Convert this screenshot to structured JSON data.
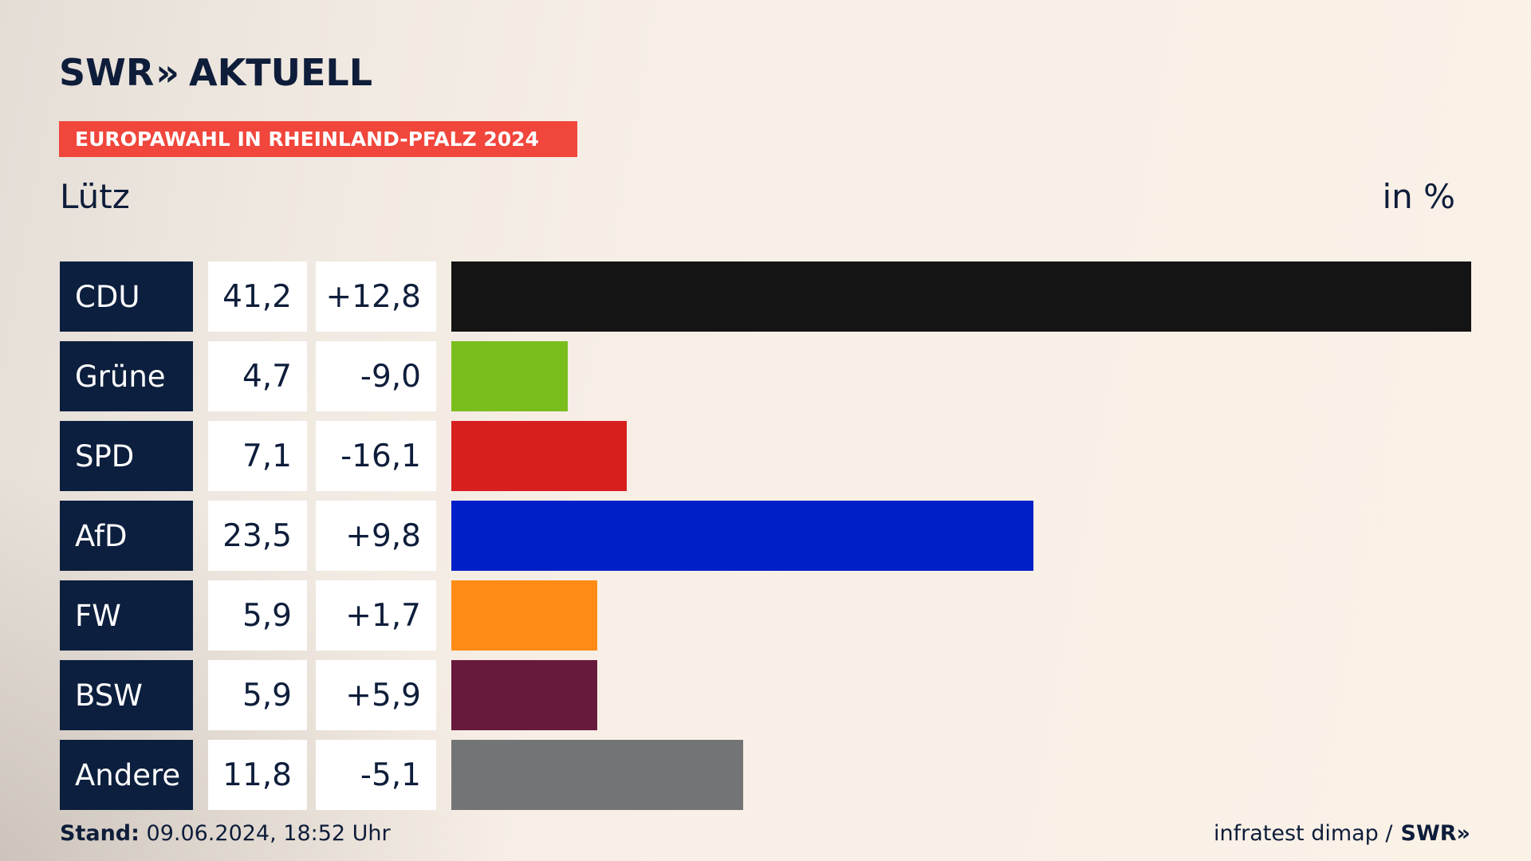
{
  "brand": {
    "name": "SWR",
    "chevrons": "»",
    "section": "AKTUELL"
  },
  "badge": "EUROPAWAHL IN RHEINLAND-PFALZ 2024",
  "place": "Lütz",
  "unit": "in %",
  "chart_data": {
    "type": "bar",
    "orientation": "horizontal",
    "title": "",
    "xlabel": "",
    "ylabel": "",
    "categories": [
      "CDU",
      "Grüne",
      "SPD",
      "AfD",
      "FW",
      "BSW",
      "Andere"
    ],
    "values": [
      41.2,
      4.7,
      7.1,
      23.5,
      5.9,
      5.9,
      11.8
    ],
    "value_labels": [
      "41,2",
      "4,7",
      "7,1",
      "23,5",
      "5,9",
      "5,9",
      "11,8"
    ],
    "diff_labels": [
      "+12,8",
      "-9,0",
      "-16,1",
      "+9,8",
      "+1,7",
      "+5,9",
      "-5,1"
    ],
    "colors": [
      "#141414",
      "#7abe1e",
      "#d71f1f",
      "#001fc8",
      "#ff8b16",
      "#681a3c",
      "#737475"
    ],
    "xlim": [
      0,
      41.2
    ],
    "grid": false,
    "legend": "none"
  },
  "footer": {
    "stand_label": "Stand:",
    "stand_value": "09.06.2024, 18:52 Uhr",
    "source": "infratest dimap /",
    "source_brand": "SWR",
    "source_chevrons": "»"
  }
}
